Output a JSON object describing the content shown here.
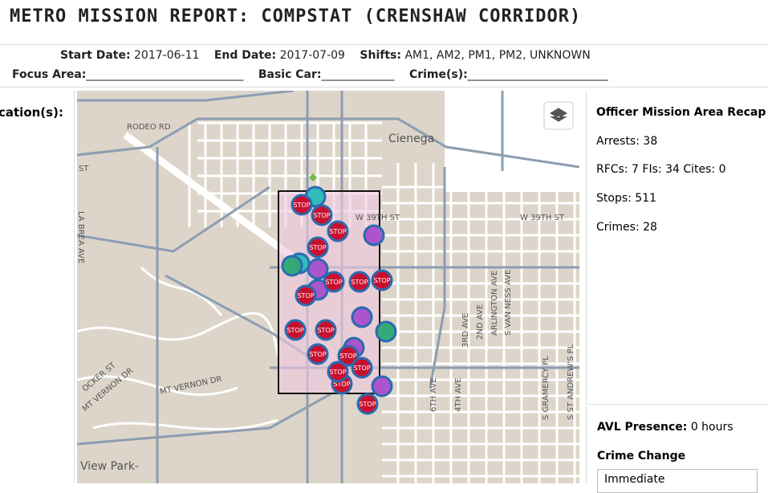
{
  "header": {
    "title": "METRO MISSION REPORT: COMPSTAT (CRENSHAW CORRIDOR)"
  },
  "filters": {
    "start_label": "Start Date:",
    "start": "2017-06-11",
    "end_label": "End Date:",
    "end": "2017-07-09",
    "shifts_label": "Shifts:",
    "shifts": "AM1, AM2, PM1, PM2, UNKNOWN",
    "focus_label": "Focus Area:",
    "focus": "____________________________",
    "car_label": "Basic Car:",
    "car": "_____________",
    "crime_label": "Crime(s):",
    "crime": "_________________________"
  },
  "left_panel": {
    "title": "cation(s):"
  },
  "map": {
    "labels": [
      "RODEO RD",
      "Cienega",
      "W 39TH ST",
      "W 39TH ST",
      "ST",
      "LA BREA AVE",
      "3RD AVE",
      "2ND AVE",
      "ARLINGTON AVE",
      "S VAN NESS AVE",
      "4TH AVE",
      "6TH AVE",
      "S GRAMERCY PL",
      "S ST ANDREW'S PL",
      "MT VERNON DR",
      "MT VERNON DR",
      "View Park-",
      "OCKER ST"
    ],
    "stop_label": "STOP"
  },
  "recap": {
    "title": "Officer Mission Area Recap",
    "arrests": {
      "label": "Arrests:",
      "value": 38
    },
    "rfcs": {
      "label": "RFCs:",
      "value": 7
    },
    "fis": {
      "label": "FIs:",
      "value": 34
    },
    "cites": {
      "label": "Cites:",
      "value": 0
    },
    "stops": {
      "label": "Stops:",
      "value": 511
    },
    "crimes": {
      "label": "Crimes:",
      "value": 28
    }
  },
  "avl": {
    "label": "AVL Presence:",
    "value": "0 hours"
  },
  "crime_change": {
    "title": "Crime Change",
    "option": "Immediate"
  }
}
